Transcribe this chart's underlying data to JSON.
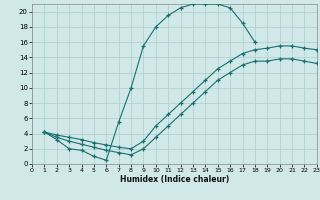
{
  "bg_color": "#d0e8e8",
  "grid_color": "#b0cccc",
  "line_color": "#1a7070",
  "xlim": [
    0,
    23
  ],
  "ylim": [
    0,
    21
  ],
  "xticks": [
    0,
    1,
    2,
    3,
    4,
    5,
    6,
    7,
    8,
    9,
    10,
    11,
    12,
    13,
    14,
    15,
    16,
    17,
    18,
    19,
    20,
    21,
    22,
    23
  ],
  "yticks": [
    0,
    2,
    4,
    6,
    8,
    10,
    12,
    14,
    16,
    18,
    20
  ],
  "xlabel": "Humidex (Indice chaleur)",
  "curve1_x": [
    1,
    2,
    3,
    4,
    5,
    6,
    7,
    8,
    9,
    10,
    11,
    12,
    13,
    14,
    15,
    16,
    17,
    18
  ],
  "curve1_y": [
    4.2,
    3.2,
    2.0,
    1.8,
    1.0,
    0.5,
    5.5,
    10.0,
    15.5,
    18.0,
    19.5,
    20.5,
    21.0,
    21.0,
    21.0,
    20.5,
    18.5,
    16.0
  ],
  "curve2_x": [
    1,
    2,
    3,
    4,
    5,
    6,
    7,
    8,
    9,
    10,
    11,
    12,
    13,
    14,
    15,
    16,
    17,
    18,
    19,
    20,
    21,
    22,
    23
  ],
  "curve2_y": [
    4.2,
    3.8,
    3.5,
    3.2,
    2.8,
    2.5,
    2.2,
    2.0,
    3.0,
    5.0,
    6.5,
    8.0,
    9.5,
    11.0,
    12.5,
    13.5,
    14.5,
    15.0,
    15.2,
    15.5,
    15.5,
    15.2,
    15.0
  ],
  "curve3_x": [
    1,
    2,
    3,
    4,
    5,
    6,
    7,
    8,
    9,
    10,
    11,
    12,
    13,
    14,
    15,
    16,
    17,
    18,
    19,
    20,
    21,
    22,
    23
  ],
  "curve3_y": [
    4.2,
    3.5,
    3.0,
    2.6,
    2.2,
    1.8,
    1.5,
    1.2,
    2.0,
    3.5,
    5.0,
    6.5,
    8.0,
    9.5,
    11.0,
    12.0,
    13.0,
    13.5,
    13.5,
    13.8,
    13.8,
    13.5,
    13.2
  ]
}
